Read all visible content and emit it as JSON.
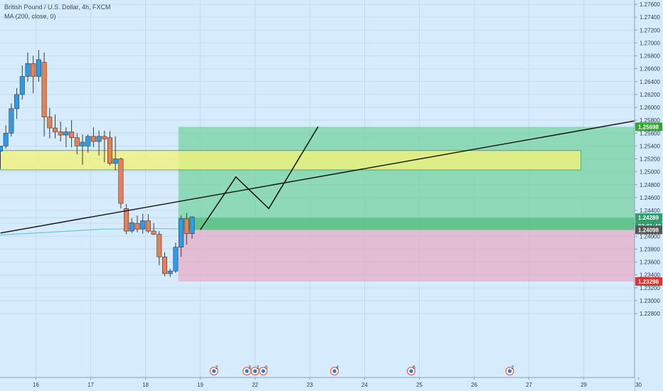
{
  "header": {
    "symbol": "British Pound / U.S. Dollar, 4h, FXCM",
    "indicator": "MA (200, close, 0)"
  },
  "colors": {
    "background": "#d6ecfc",
    "bull": "#2e9be8",
    "bear": "#ec7e55",
    "zone": "#f2f27a",
    "profit": "#6fd19a",
    "loss": "#e7a9c2",
    "ma": "#6cc6d6",
    "tag_green": "#2ea82e",
    "tag_red": "#e0312f",
    "tag_current": "#555555",
    "tag_countdown": "#2e9e6a"
  },
  "chart_data": {
    "type": "candlestick",
    "ylim": [
      1.2275,
      1.277
    ],
    "y_ticks": [
      "1.27600",
      "1.27400",
      "1.27200",
      "1.27000",
      "1.26800",
      "1.26600",
      "1.26400",
      "1.26200",
      "1.26000",
      "1.25800",
      "1.25600",
      "1.25400",
      "1.25200",
      "1.25000",
      "1.24800",
      "1.24600",
      "1.24400",
      "1.24200",
      "1.24000",
      "1.23800",
      "1.23600",
      "1.23400",
      "1.23200",
      "1.23000",
      "1.22800"
    ],
    "x_ticks": [
      {
        "label": "16",
        "x": 3.0
      },
      {
        "label": "17",
        "x": 13.0
      },
      {
        "label": "18",
        "x": 23.0
      },
      {
        "label": "19",
        "x": 33.0
      },
      {
        "label": "22",
        "x": 43.0
      },
      {
        "label": "23",
        "x": 53.0
      },
      {
        "label": "24",
        "x": 63.0
      },
      {
        "label": "25",
        "x": 73.0
      },
      {
        "label": "26",
        "x": 83.0
      },
      {
        "label": "27",
        "x": 93.0
      },
      {
        "label": "29",
        "x": 103.0
      },
      {
        "label": "30",
        "x": 113.0
      }
    ],
    "candles": [
      {
        "x": -3.5,
        "o": 1.2532,
        "h": 1.254,
        "l": 1.2505,
        "c": 1.254
      },
      {
        "x": -2.5,
        "o": 1.254,
        "h": 1.2572,
        "l": 1.2536,
        "c": 1.256
      },
      {
        "x": -1.5,
        "o": 1.256,
        "h": 1.2606,
        "l": 1.2555,
        "c": 1.2598
      },
      {
        "x": -0.5,
        "o": 1.2598,
        "h": 1.263,
        "l": 1.2582,
        "c": 1.262
      },
      {
        "x": 0.5,
        "o": 1.262,
        "h": 1.2665,
        "l": 1.2612,
        "c": 1.2648
      },
      {
        "x": 1.5,
        "o": 1.2648,
        "h": 1.2685,
        "l": 1.264,
        "c": 1.2668
      },
      {
        "x": 2.5,
        "o": 1.2668,
        "h": 1.268,
        "l": 1.2622,
        "c": 1.2648
      },
      {
        "x": 3.5,
        "o": 1.2648,
        "h": 1.2689,
        "l": 1.264,
        "c": 1.2674
      },
      {
        "x": 4.5,
        "o": 1.267,
        "h": 1.2685,
        "l": 1.2555,
        "c": 1.2585
      },
      {
        "x": 5.5,
        "o": 1.2585,
        "h": 1.2599,
        "l": 1.2552,
        "c": 1.2568
      },
      {
        "x": 6.5,
        "o": 1.2568,
        "h": 1.2589,
        "l": 1.2552,
        "c": 1.2562
      },
      {
        "x": 7.5,
        "o": 1.2562,
        "h": 1.2578,
        "l": 1.2547,
        "c": 1.2557
      },
      {
        "x": 8.5,
        "o": 1.2557,
        "h": 1.2569,
        "l": 1.2538,
        "c": 1.2562
      },
      {
        "x": 9.5,
        "o": 1.2562,
        "h": 1.258,
        "l": 1.2538,
        "c": 1.2553
      },
      {
        "x": 10.5,
        "o": 1.2553,
        "h": 1.256,
        "l": 1.2527,
        "c": 1.254
      },
      {
        "x": 11.5,
        "o": 1.254,
        "h": 1.2558,
        "l": 1.2511,
        "c": 1.2546
      },
      {
        "x": 12.5,
        "o": 1.254,
        "h": 1.2558,
        "l": 1.253,
        "c": 1.2555
      },
      {
        "x": 13.5,
        "o": 1.2555,
        "h": 1.2569,
        "l": 1.2538,
        "c": 1.2547
      },
      {
        "x": 14.5,
        "o": 1.2547,
        "h": 1.2564,
        "l": 1.2525,
        "c": 1.2555
      },
      {
        "x": 15.5,
        "o": 1.2555,
        "h": 1.2564,
        "l": 1.2515,
        "c": 1.2551
      },
      {
        "x": 16.5,
        "o": 1.2553,
        "h": 1.2563,
        "l": 1.251,
        "c": 1.2513
      },
      {
        "x": 17.5,
        "o": 1.2513,
        "h": 1.2555,
        "l": 1.2502,
        "c": 1.252
      },
      {
        "x": 18.5,
        "o": 1.252,
        "h": 1.2522,
        "l": 1.2443,
        "c": 1.2451
      },
      {
        "x": 19.5,
        "o": 1.2443,
        "h": 1.245,
        "l": 1.2403,
        "c": 1.2408
      },
      {
        "x": 20.5,
        "o": 1.2408,
        "h": 1.2428,
        "l": 1.2405,
        "c": 1.2421
      },
      {
        "x": 21.5,
        "o": 1.242,
        "h": 1.2432,
        "l": 1.2406,
        "c": 1.2411
      },
      {
        "x": 22.5,
        "o": 1.2411,
        "h": 1.2435,
        "l": 1.2404,
        "c": 1.2424
      },
      {
        "x": 23.5,
        "o": 1.2424,
        "h": 1.2434,
        "l": 1.2405,
        "c": 1.2408
      },
      {
        "x": 24.5,
        "o": 1.2408,
        "h": 1.242,
        "l": 1.2402,
        "c": 1.2403
      },
      {
        "x": 25.5,
        "o": 1.2403,
        "h": 1.2408,
        "l": 1.2355,
        "c": 1.2368
      },
      {
        "x": 26.5,
        "o": 1.2368,
        "h": 1.2375,
        "l": 1.2338,
        "c": 1.2342
      },
      {
        "x": 27.5,
        "o": 1.2342,
        "h": 1.235,
        "l": 1.2337,
        "c": 1.2346
      },
      {
        "x": 28.5,
        "o": 1.2346,
        "h": 1.239,
        "l": 1.2343,
        "c": 1.2383
      },
      {
        "x": 29.5,
        "o": 1.2383,
        "h": 1.2432,
        "l": 1.2368,
        "c": 1.2427
      },
      {
        "x": 30.5,
        "o": 1.2427,
        "h": 1.2436,
        "l": 1.2387,
        "c": 1.2404
      },
      {
        "x": 31.5,
        "o": 1.2404,
        "h": 1.2431,
        "l": 1.2396,
        "c": 1.243
      }
    ],
    "moving_average": [
      {
        "x": -3.5,
        "y": 1.2402
      },
      {
        "x": 5.0,
        "y": 1.2406
      },
      {
        "x": 15.0,
        "y": 1.2411
      },
      {
        "x": 25.0,
        "y": 1.2412
      },
      {
        "x": 31.5,
        "y": 1.2411
      }
    ],
    "demand_zone": {
      "x_start": -3.5,
      "x_end": 102.5,
      "y_top": 1.2533,
      "y_bottom": 1.2503
    },
    "trendline": [
      {
        "x": -3.5,
        "y": 1.2405
      },
      {
        "x": 119.0,
        "y": 1.2589
      }
    ],
    "position": {
      "x_start": 29.0,
      "x_end": 119.0,
      "target": 1.25698,
      "entry": 1.24098,
      "stop": 1.23298,
      "current": 1.24289
    },
    "projection": [
      {
        "x": 33.0,
        "y": 1.241
      },
      {
        "x": 39.5,
        "y": 1.2492
      },
      {
        "x": 45.5,
        "y": 1.2443
      },
      {
        "x": 54.5,
        "y": 1.257
      }
    ],
    "price_tags": {
      "target": "1.25698",
      "current": "1.24289",
      "countdown": "03:01:42",
      "entry": "1.24098",
      "stop": "1.23298"
    },
    "events": [
      {
        "x": 35.5,
        "count": "2"
      },
      {
        "x": 41.5,
        "count": "3"
      },
      {
        "x": 43.0,
        "count": "2"
      },
      {
        "x": 44.5,
        "count": "6"
      },
      {
        "x": 57.5,
        "count": "4"
      },
      {
        "x": 71.5,
        "count": "6"
      },
      {
        "x": 89.5,
        "count": "2"
      }
    ]
  }
}
